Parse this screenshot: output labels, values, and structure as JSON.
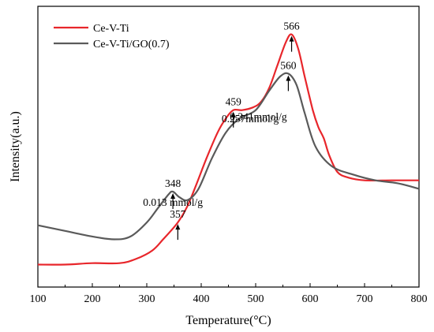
{
  "chart_data": {
    "type": "line",
    "xlabel": "Temperature(°C)",
    "ylabel": "Intensity(a.u.)",
    "xlim": [
      100,
      800
    ],
    "xticks": [
      "100",
      "200",
      "300",
      "400",
      "500",
      "600",
      "700",
      "800"
    ],
    "yticks_shown": false,
    "legend_position": "top-left",
    "series": [
      {
        "name": "Ce-V-Ti",
        "color": "#e8262b",
        "x": [
          100,
          150,
          200,
          250,
          280,
          310,
          330,
          357,
          375,
          390,
          410,
          430,
          445,
          459,
          475,
          495,
          510,
          525,
          540,
          555,
          566,
          578,
          590,
          605,
          615,
          625,
          635,
          650,
          670,
          700,
          750,
          800
        ],
        "y": [
          0.08,
          0.08,
          0.085,
          0.085,
          0.1,
          0.13,
          0.17,
          0.23,
          0.29,
          0.36,
          0.46,
          0.55,
          0.6,
          0.63,
          0.63,
          0.64,
          0.66,
          0.71,
          0.79,
          0.87,
          0.9,
          0.85,
          0.75,
          0.63,
          0.57,
          0.53,
          0.47,
          0.41,
          0.39,
          0.38,
          0.38,
          0.38
        ]
      },
      {
        "name": "Ce-V-Ti/GO(0.7)",
        "color": "#5a5a5a",
        "x": [
          100,
          150,
          200,
          240,
          270,
          300,
          320,
          340,
          348,
          360,
          375,
          395,
          420,
          445,
          470,
          500,
          525,
          545,
          560,
          575,
          590,
          610,
          640,
          680,
          720,
          760,
          800
        ],
        "y": [
          0.22,
          0.2,
          0.18,
          0.17,
          0.18,
          0.23,
          0.28,
          0.33,
          0.34,
          0.32,
          0.31,
          0.35,
          0.46,
          0.55,
          0.6,
          0.63,
          0.7,
          0.75,
          0.76,
          0.72,
          0.62,
          0.5,
          0.43,
          0.4,
          0.38,
          0.37,
          0.35
        ]
      }
    ],
    "annotations": [
      {
        "series": 0,
        "x": 357,
        "label": "357"
      },
      {
        "series": 0,
        "x": 459,
        "label": "459"
      },
      {
        "series": 0,
        "x": 566,
        "label": "566"
      },
      {
        "series": 0,
        "x": 490,
        "label": "0.257mmol/g"
      },
      {
        "series": 1,
        "x": 348,
        "label": "348"
      },
      {
        "series": 1,
        "x": 560,
        "label": "560"
      },
      {
        "series": 1,
        "x": 348,
        "label": "0.013 mmol/g"
      },
      {
        "series": 1,
        "x": 505,
        "label": "0.341mmol/g"
      }
    ]
  }
}
